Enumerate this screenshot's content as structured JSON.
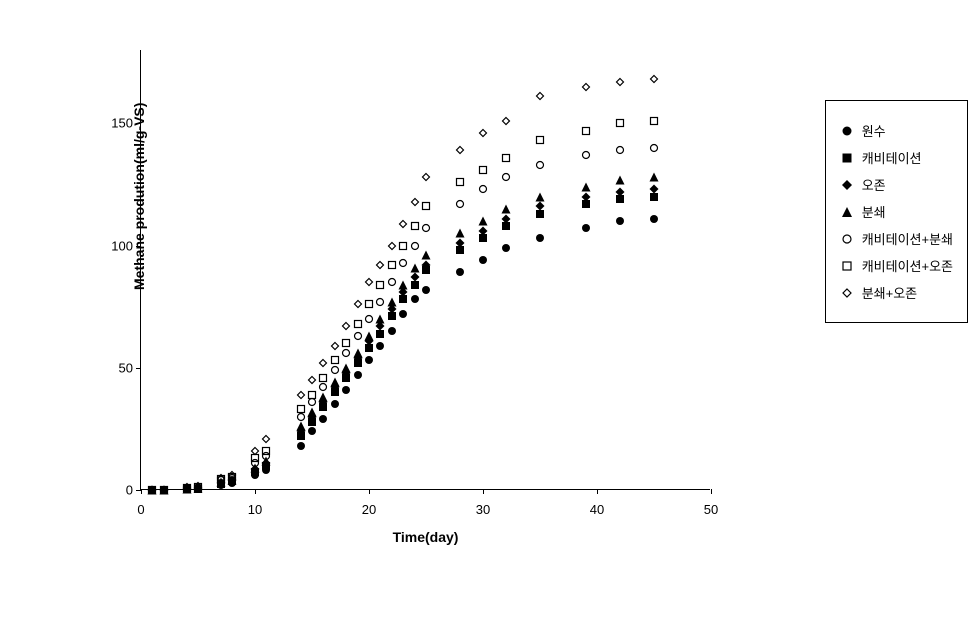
{
  "chart": {
    "type": "scatter",
    "xlabel": "Time(day)",
    "ylabel": "Methane prodution(ml/g-VS)",
    "label_fontsize": 14,
    "tick_fontsize": 13,
    "xlim": [
      0,
      50
    ],
    "ylim": [
      0,
      180
    ],
    "xtick_step": 10,
    "xticks": [
      0,
      10,
      20,
      30,
      40,
      50
    ],
    "yticks": [
      0,
      50,
      100,
      150
    ],
    "background_color": "#ffffff",
    "axis_color": "#000000",
    "marker_size": 9,
    "series": [
      {
        "name": "원수",
        "marker": "filled-circle",
        "color": "#000000",
        "x": [
          1,
          2,
          4,
          5,
          7,
          8,
          10,
          11,
          14,
          15,
          16,
          17,
          18,
          19,
          20,
          21,
          22,
          23,
          24,
          25,
          28,
          30,
          32,
          35,
          39,
          42,
          45
        ],
        "y": [
          0,
          0,
          0.3,
          0.5,
          2,
          3,
          6,
          8,
          18,
          24,
          29,
          35,
          41,
          47,
          53,
          59,
          65,
          72,
          78,
          82,
          89,
          94,
          99,
          103,
          107,
          110,
          111
        ]
      },
      {
        "name": "캐비테이션",
        "marker": "filled-square",
        "color": "#000000",
        "x": [
          1,
          2,
          4,
          5,
          7,
          8,
          10,
          11,
          14,
          15,
          16,
          17,
          18,
          19,
          20,
          21,
          22,
          23,
          24,
          25,
          28,
          30,
          32,
          35,
          39,
          42,
          45
        ],
        "y": [
          0,
          0,
          0.4,
          0.6,
          2.5,
          3.5,
          7.5,
          10,
          22,
          28,
          34,
          40,
          46,
          52,
          58,
          64,
          71,
          78,
          84,
          90,
          98,
          103,
          108,
          113,
          117,
          119,
          120
        ]
      },
      {
        "name": "오존",
        "marker": "filled-diamond",
        "color": "#000000",
        "x": [
          1,
          2,
          4,
          5,
          7,
          8,
          10,
          11,
          14,
          15,
          16,
          17,
          18,
          19,
          20,
          21,
          22,
          23,
          24,
          25,
          28,
          30,
          32,
          35,
          39,
          42,
          45
        ],
        "y": [
          0,
          0,
          0.5,
          0.7,
          3,
          4,
          8.5,
          11,
          24,
          30,
          36,
          42,
          48,
          54,
          61,
          67,
          74,
          81,
          87,
          92,
          101,
          106,
          111,
          116,
          120,
          122,
          123
        ]
      },
      {
        "name": "분쇄",
        "marker": "filled-triangle",
        "color": "#000000",
        "x": [
          1,
          2,
          4,
          5,
          7,
          8,
          10,
          11,
          14,
          15,
          16,
          17,
          18,
          19,
          20,
          21,
          22,
          23,
          24,
          25,
          28,
          30,
          32,
          35,
          39,
          42,
          45
        ],
        "y": [
          0,
          0,
          0.6,
          0.8,
          3.2,
          4.2,
          9,
          12,
          26,
          32,
          38,
          44,
          50,
          56,
          63,
          70,
          77,
          84,
          91,
          96,
          105,
          110,
          115,
          120,
          124,
          127,
          128
        ]
      },
      {
        "name": "캐비테이션+분쇄",
        "marker": "open-circle",
        "color": "#000000",
        "x": [
          1,
          2,
          4,
          5,
          7,
          8,
          10,
          11,
          14,
          15,
          16,
          17,
          18,
          19,
          20,
          21,
          22,
          23,
          24,
          25,
          28,
          30,
          32,
          35,
          39,
          42,
          45
        ],
        "y": [
          0,
          0,
          0.8,
          1,
          4,
          5,
          11,
          14,
          30,
          36,
          42,
          49,
          56,
          63,
          70,
          77,
          85,
          93,
          100,
          107,
          117,
          123,
          128,
          133,
          137,
          139,
          140
        ]
      },
      {
        "name": "캐비테이션+오존",
        "marker": "open-square",
        "color": "#000000",
        "x": [
          1,
          2,
          4,
          5,
          7,
          8,
          10,
          11,
          14,
          15,
          16,
          17,
          18,
          19,
          20,
          21,
          22,
          23,
          24,
          25,
          28,
          30,
          32,
          35,
          39,
          42,
          45
        ],
        "y": [
          0,
          0,
          1,
          1.2,
          4.5,
          5.5,
          13,
          16,
          33,
          39,
          46,
          53,
          60,
          68,
          76,
          84,
          92,
          100,
          108,
          116,
          126,
          131,
          136,
          143,
          147,
          150,
          151
        ]
      },
      {
        "name": "분쇄+오존",
        "marker": "open-diamond",
        "color": "#000000",
        "x": [
          1,
          2,
          4,
          5,
          7,
          8,
          10,
          11,
          14,
          15,
          16,
          17,
          18,
          19,
          20,
          21,
          22,
          23,
          24,
          25,
          28,
          30,
          32,
          35,
          39,
          42,
          45
        ],
        "y": [
          0,
          0,
          1.2,
          1.5,
          5,
          6,
          16,
          21,
          39,
          45,
          52,
          59,
          67,
          76,
          85,
          92,
          100,
          109,
          118,
          128,
          139,
          146,
          151,
          161,
          165,
          167,
          168
        ]
      }
    ]
  }
}
